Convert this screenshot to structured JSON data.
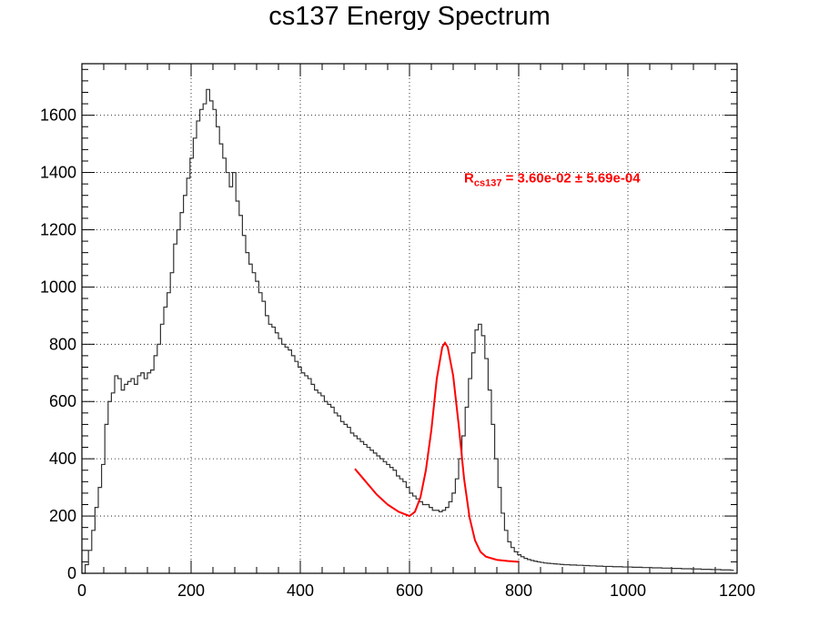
{
  "chart_data": {
    "type": "line",
    "title": "cs137 Energy Spectrum",
    "xlabel": "",
    "ylabel": "",
    "xlim": [
      0,
      1200
    ],
    "ylim": [
      0,
      1780
    ],
    "x_ticks": [
      0,
      200,
      400,
      600,
      800,
      1000,
      1200
    ],
    "y_ticks": [
      0,
      200,
      400,
      600,
      800,
      1000,
      1200,
      1400,
      1600
    ],
    "grid": true,
    "bin_width": 6,
    "series": [
      {
        "style": "histogram",
        "color": "#333333",
        "x_start": 0,
        "values": [
          0,
          30,
          80,
          150,
          230,
          300,
          380,
          520,
          600,
          630,
          690,
          680,
          640,
          660,
          670,
          680,
          660,
          690,
          700,
          680,
          700,
          710,
          760,
          800,
          870,
          930,
          980,
          1050,
          1150,
          1200,
          1260,
          1320,
          1380,
          1450,
          1520,
          1580,
          1620,
          1640,
          1690,
          1650,
          1620,
          1560,
          1500,
          1450,
          1400,
          1350,
          1400,
          1300,
          1250,
          1180,
          1120,
          1080,
          1050,
          1020,
          980,
          950,
          900,
          870,
          860,
          840,
          820,
          800,
          790,
          780,
          760,
          740,
          720,
          700,
          690,
          680,
          660,
          640,
          630,
          620,
          600,
          590,
          580,
          560,
          550,
          530,
          520,
          510,
          490,
          480,
          470,
          460,
          450,
          440,
          430,
          420,
          410,
          400,
          390,
          380,
          370,
          360,
          340,
          330,
          320,
          300,
          280,
          270,
          260,
          250,
          240,
          240,
          230,
          220,
          220,
          215,
          220,
          230,
          250,
          280,
          330,
          400,
          480,
          580,
          680,
          770,
          850,
          870,
          830,
          750,
          640,
          520,
          400,
          300,
          210,
          150,
          110,
          90,
          75,
          65,
          58,
          52,
          48,
          45,
          42,
          40,
          38,
          36,
          35,
          34,
          33,
          32,
          31,
          30,
          30,
          29,
          29,
          28,
          28,
          27,
          27,
          26,
          26,
          25,
          25,
          24,
          24,
          24,
          23,
          23,
          23,
          22,
          22,
          22,
          21,
          21,
          21,
          20,
          20,
          20,
          19,
          19,
          19,
          18,
          18,
          18,
          17,
          17,
          17,
          16,
          16,
          16,
          15,
          15,
          15,
          14,
          14,
          14,
          13,
          13,
          13,
          12,
          12,
          12,
          11
        ]
      },
      {
        "style": "fit",
        "color": "#ff0000",
        "x": [
          500,
          520,
          540,
          560,
          580,
          600,
          610,
          620,
          630,
          640,
          650,
          660,
          665,
          670,
          680,
          690,
          700,
          710,
          720,
          730,
          740,
          760,
          780,
          800
        ],
        "values": [
          365,
          320,
          275,
          240,
          215,
          200,
          215,
          265,
          360,
          500,
          680,
          790,
          805,
          790,
          690,
          520,
          330,
          195,
          115,
          75,
          58,
          47,
          43,
          40
        ]
      }
    ],
    "annotation": {
      "main": "R",
      "sub": "cs137",
      "text": " = 3.60e-02 ± 5.69e-04",
      "color": "#ff0000"
    }
  }
}
